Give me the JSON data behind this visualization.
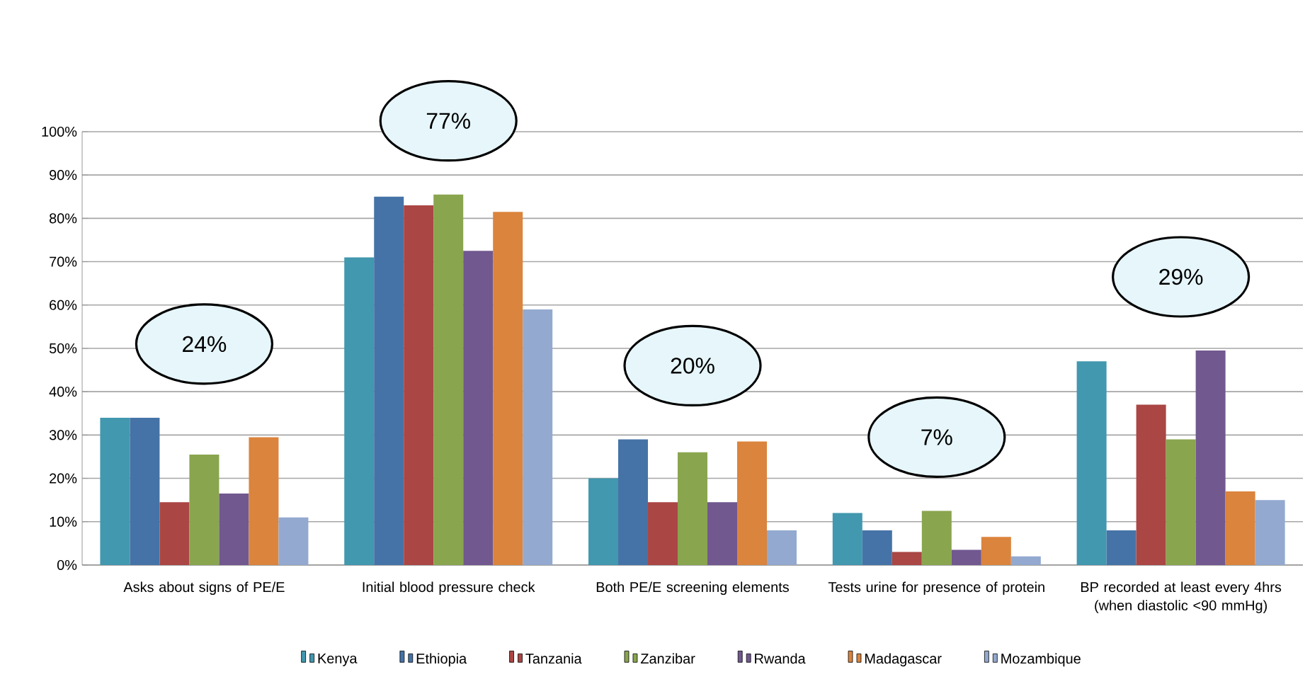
{
  "chart_data": {
    "type": "bar",
    "categories": [
      "Asks about signs of PE/E",
      "Initial blood pressure check",
      "Both PE/E screening elements",
      "Tests urine for presence of protein",
      "BP recorded at least every 4hrs (when diastolic <90 mmHg)"
    ],
    "series": [
      {
        "name": "Kenya",
        "color": "#4198af",
        "values": [
          34,
          71,
          20,
          12,
          47
        ]
      },
      {
        "name": "Ethiopia",
        "color": "#4573a7",
        "values": [
          34,
          85,
          29,
          8,
          8
        ]
      },
      {
        "name": "Tanzania",
        "color": "#aa4644",
        "values": [
          14.5,
          83,
          14.5,
          3,
          37
        ]
      },
      {
        "name": "Zanzibar",
        "color": "#89a54e",
        "values": [
          25.5,
          85.5,
          26,
          12.5,
          29
        ]
      },
      {
        "name": "Rwanda",
        "color": "#71588f",
        "values": [
          16.5,
          72.5,
          14.5,
          3.5,
          49.5
        ]
      },
      {
        "name": "Madagascar",
        "color": "#db843d",
        "values": [
          29.5,
          81.5,
          28.5,
          6.5,
          17
        ]
      },
      {
        "name": "Mozambique",
        "color": "#93a9cf",
        "values": [
          11,
          59,
          8,
          2,
          15
        ]
      }
    ],
    "ylim": [
      0,
      100
    ],
    "yticks": [
      {
        "value": 0,
        "label": "0%"
      },
      {
        "value": 10,
        "label": "10%"
      },
      {
        "value": 20,
        "label": "20%"
      },
      {
        "value": 30,
        "label": "30%"
      },
      {
        "value": 40,
        "label": "40%"
      },
      {
        "value": 50,
        "label": "50%"
      },
      {
        "value": 60,
        "label": "60%"
      },
      {
        "value": 70,
        "label": "70%"
      },
      {
        "value": 80,
        "label": "80%"
      },
      {
        "value": 90,
        "label": "90%"
      },
      {
        "value": 100,
        "label": "100%"
      }
    ],
    "grid": "y",
    "legend": "bottom",
    "annotations": [
      "24%",
      "77%",
      "20%",
      "7%",
      "29%"
    ]
  }
}
